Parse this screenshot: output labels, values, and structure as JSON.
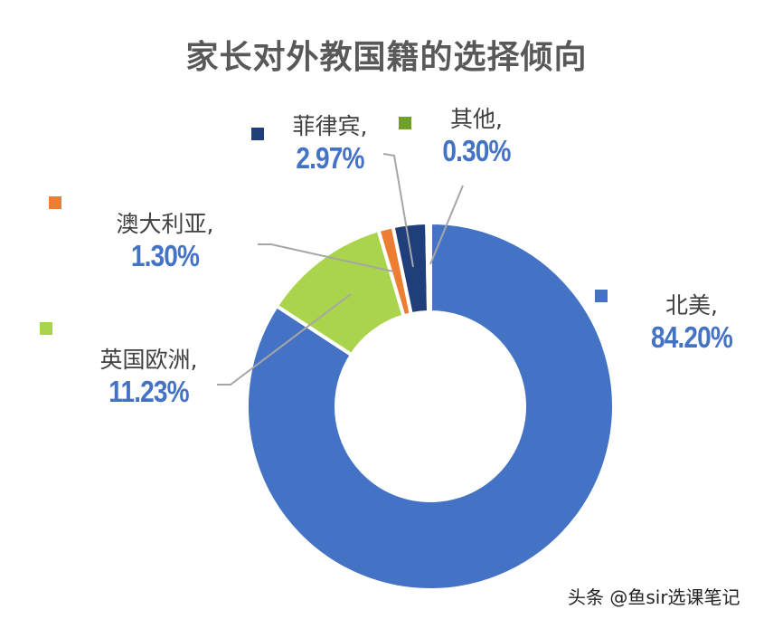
{
  "chart_data": {
    "type": "pie",
    "variant": "donut",
    "title": "家长对外教国籍的选择倾向",
    "categories": [
      "北美",
      "英国欧洲",
      "澳大利亚",
      "菲律宾",
      "其他"
    ],
    "values": [
      84.2,
      11.23,
      1.3,
      2.97,
      0.3
    ],
    "unit": "%",
    "colors": [
      "#4472c4",
      "#a9d44b",
      "#ed7d31",
      "#203f7a",
      "#70a02c"
    ],
    "start_angle": "12 o'clock, clockwise",
    "labels": [
      {
        "name": "北美,",
        "pct": "84.20%"
      },
      {
        "name": "英国欧洲,",
        "pct": "11.23%"
      },
      {
        "name": "澳大利亚,",
        "pct": "1.30%"
      },
      {
        "name": "菲律宾,",
        "pct": "2.97%"
      },
      {
        "name": "其他,",
        "pct": "0.30%"
      }
    ],
    "legend": "inline data labels with color swatches",
    "leader_lines": true
  },
  "watermark": "头条 @鱼sir选课笔记"
}
